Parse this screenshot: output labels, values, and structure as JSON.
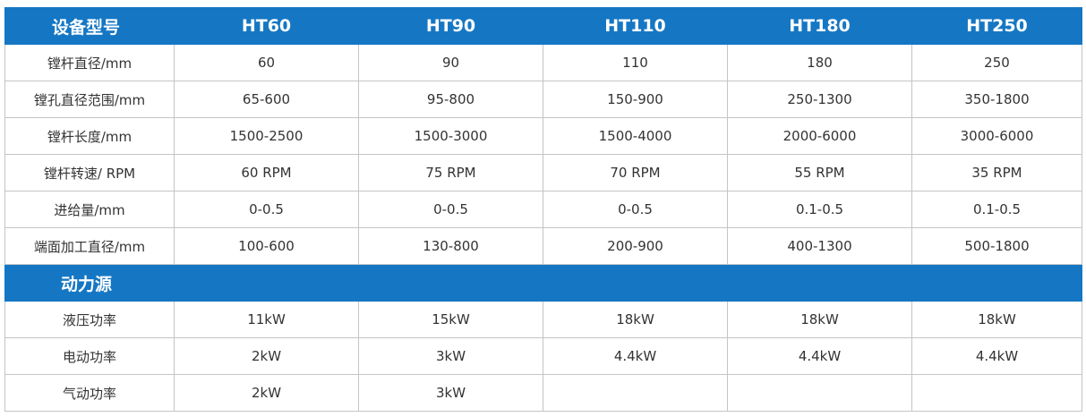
{
  "header": {
    "columns": [
      "设备型号",
      "HT60",
      "HT90",
      "HT110",
      "HT180",
      "HT250"
    ]
  },
  "table": {
    "rows": [
      [
        "镗杆直径/mm",
        "60",
        "90",
        "110",
        "180",
        "250"
      ],
      [
        "镗孔直径范围/mm",
        "65-600",
        "95-800",
        "150-900",
        "250-1300",
        "350-1800"
      ],
      [
        "镗杆长度/mm",
        "1500-2500",
        "1500-3000",
        "1500-4000",
        "2000-6000",
        "3000-6000"
      ],
      [
        "镗杆转速/ RPM",
        "60 RPM",
        "75 RPM",
        "70 RPM",
        "55 RPM",
        "35 RPM"
      ],
      [
        "进给量/mm",
        "0-0.5",
        "0-0.5",
        "0-0.5",
        "0.1-0.5",
        "0.1-0.5"
      ],
      [
        "端面加工直径/mm",
        "100-600",
        "130-800",
        "200-900",
        "400-1300",
        "500-1800"
      ]
    ]
  },
  "section": {
    "title": "动力源"
  },
  "power": {
    "rows": [
      [
        "液压功率",
        "11kW",
        "15kW",
        "18kW",
        "18kW",
        "18kW"
      ],
      [
        "电动功率",
        "2kW",
        "3kW",
        "4.4kW",
        "4.4kW",
        "4.4kW"
      ],
      [
        "气动功率",
        "2kW",
        "3kW"
      ]
    ]
  }
}
